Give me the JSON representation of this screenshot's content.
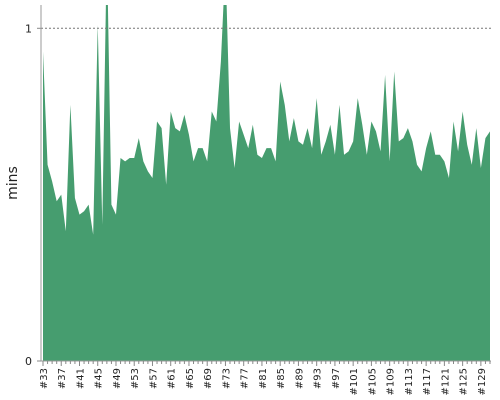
{
  "chart_data": {
    "type": "area",
    "y_label": "mins",
    "color": "#469d6f",
    "categories": [
      "#33",
      null,
      null,
      null,
      "#37",
      null,
      null,
      null,
      "#41",
      null,
      null,
      null,
      "#45",
      null,
      null,
      null,
      "#49",
      null,
      null,
      null,
      "#53",
      null,
      null,
      null,
      "#57",
      null,
      null,
      null,
      "#61",
      null,
      null,
      null,
      "#65",
      null,
      null,
      null,
      "#69",
      null,
      null,
      null,
      "#73",
      null,
      null,
      null,
      "#77",
      null,
      null,
      null,
      "#81",
      null,
      null,
      null,
      "#85",
      null,
      null,
      null,
      "#89",
      null,
      null,
      null,
      "#93",
      null,
      null,
      null,
      "#97",
      null,
      null,
      null,
      "#101",
      null,
      null,
      null,
      "#105",
      null,
      null,
      null,
      "#109",
      null,
      null,
      null,
      "#113",
      null,
      null,
      null,
      "#117",
      null,
      null,
      null,
      "#121",
      null,
      null,
      null,
      "#125",
      null,
      null,
      null,
      "#129",
      null,
      null
    ],
    "values": [
      0.93,
      0.59,
      0.54,
      0.48,
      0.5,
      0.39,
      0.77,
      0.49,
      0.44,
      0.45,
      0.47,
      0.38,
      1.01,
      0.41,
      1.25,
      0.47,
      0.44,
      0.61,
      0.6,
      0.61,
      0.61,
      0.67,
      0.6,
      0.57,
      0.55,
      0.72,
      0.7,
      0.53,
      0.75,
      0.7,
      0.69,
      0.74,
      0.68,
      0.6,
      0.64,
      0.64,
      0.6,
      0.75,
      0.72,
      0.9,
      1.2,
      0.7,
      0.58,
      0.72,
      0.68,
      0.64,
      0.71,
      0.62,
      0.61,
      0.64,
      0.64,
      0.6,
      0.84,
      0.77,
      0.66,
      0.73,
      0.66,
      0.65,
      0.7,
      0.64,
      0.79,
      0.62,
      0.66,
      0.71,
      0.62,
      0.77,
      0.62,
      0.63,
      0.66,
      0.79,
      0.71,
      0.62,
      0.72,
      0.69,
      0.63,
      0.86,
      0.6,
      0.87,
      0.66,
      0.67,
      0.7,
      0.66,
      0.59,
      0.57,
      0.64,
      0.69,
      0.62,
      0.62,
      0.6,
      0.55,
      0.72,
      0.63,
      0.75,
      0.65,
      0.59,
      0.7,
      0.58,
      0.67,
      0.69
    ],
    "ylim": [
      0,
      1.07
    ],
    "yticks": [
      0,
      1
    ],
    "grid": true
  }
}
